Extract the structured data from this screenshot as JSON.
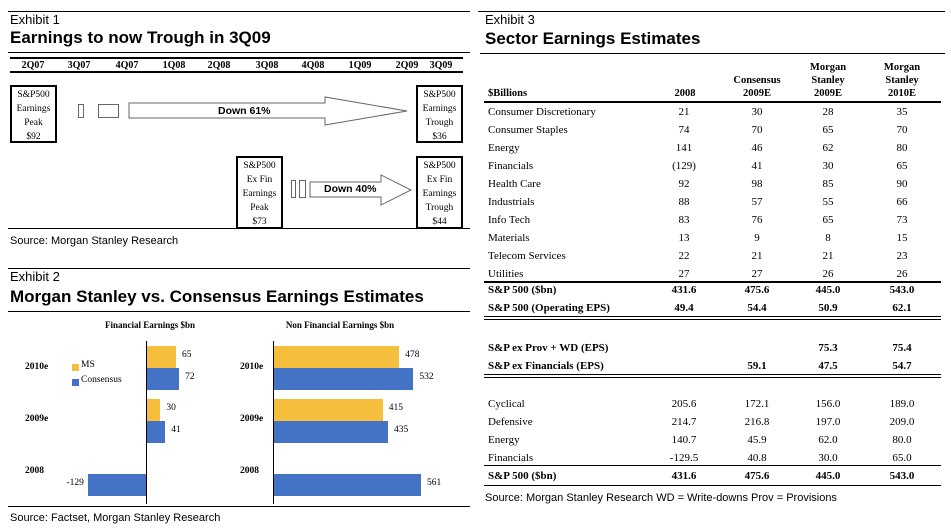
{
  "exhibit1": {
    "label": "Exhibit 1",
    "title": "Earnings to now Trough in 3Q09",
    "quarters": [
      "2Q07",
      "3Q07",
      "4Q07",
      "1Q08",
      "2Q08",
      "3Q08",
      "4Q08",
      "1Q09",
      "2Q09",
      "3Q09"
    ],
    "peak_box": [
      "S&P500",
      "Earnings",
      "Peak",
      "$92"
    ],
    "trough_box": [
      "S&P500",
      "Earnings",
      "Trough",
      "$36"
    ],
    "exfin_peak_box": [
      "S&P500",
      "Ex Fin",
      "Earnings",
      "Peak",
      "$73"
    ],
    "exfin_trough_box": [
      "S&P500",
      "Ex Fin",
      "Earnings",
      "Trough",
      "$44"
    ],
    "arrow1": "Down 61%",
    "arrow2": "Down 40%",
    "source": "Source: Morgan Stanley Research"
  },
  "exhibit2": {
    "label": "Exhibit 2",
    "title": "Morgan Stanley vs. Consensus Earnings Estimates",
    "source": "Source: Factset, Morgan Stanley Research"
  },
  "chart_data": [
    {
      "type": "bar",
      "orientation": "horizontal",
      "title": "Financial Earnings $bn",
      "categories": [
        "2010e",
        "2009e",
        "2008"
      ],
      "series": [
        {
          "name": "MS",
          "color": "#F5BE3C",
          "values": [
            65,
            30,
            null
          ]
        },
        {
          "name": "Consensus",
          "color": "#4472C4",
          "values": [
            72,
            41,
            -129
          ]
        }
      ],
      "legend": "left-inside"
    },
    {
      "type": "bar",
      "orientation": "horizontal",
      "title": "Non Financial Earnings $bn",
      "categories": [
        "2010e",
        "2009e",
        "2008"
      ],
      "series": [
        {
          "name": "MS",
          "color": "#F5BE3C",
          "values": [
            478,
            415,
            null
          ]
        },
        {
          "name": "Consensus",
          "color": "#4472C4",
          "values": [
            532,
            435,
            561
          ]
        }
      ]
    }
  ],
  "exhibit3": {
    "label": "Exhibit 3",
    "title": "Sector Earnings Estimates",
    "headers": [
      "$Billions",
      "2008",
      "Consensus\n2009E",
      "Morgan\nStanley\n2009E",
      "Morgan\nStanley\n2010E"
    ],
    "sectors": [
      [
        "Consumer Discretionary",
        "21",
        "30",
        "28",
        "35"
      ],
      [
        "Consumer Staples",
        "74",
        "70",
        "65",
        "70"
      ],
      [
        "Energy",
        "141",
        "46",
        "62",
        "80"
      ],
      [
        "Financials",
        "(129)",
        "41",
        "30",
        "65"
      ],
      [
        "Health Care",
        "92",
        "98",
        "85",
        "90"
      ],
      [
        "Industrials",
        "88",
        "57",
        "55",
        "66"
      ],
      [
        "Info Tech",
        "83",
        "76",
        "65",
        "73"
      ],
      [
        "Materials",
        "13",
        "9",
        "8",
        "15"
      ],
      [
        "Telecom Services",
        "22",
        "21",
        "21",
        "23"
      ],
      [
        "Utilities",
        "27",
        "27",
        "26",
        "26"
      ]
    ],
    "totals": [
      [
        "S&P 500 ($bn)",
        "431.6",
        "475.6",
        "445.0",
        "543.0"
      ],
      [
        "S&P 500 (Operating EPS)",
        "49.4",
        "54.4",
        "50.9",
        "62.1"
      ]
    ],
    "ex_rows": [
      [
        "S&P ex Prov + WD (EPS)",
        "",
        "",
        "75.3",
        "75.4"
      ],
      [
        "S&P ex Financials (EPS)",
        "",
        "59.1",
        "47.5",
        "54.7"
      ]
    ],
    "groups": [
      [
        "Cyclical",
        "205.6",
        "172.1",
        "156.0",
        "189.0"
      ],
      [
        "Defensive",
        "214.7",
        "216.8",
        "197.0",
        "209.0"
      ],
      [
        "Energy",
        "140.7",
        "45.9",
        "62.0",
        "80.0"
      ],
      [
        "Financials",
        "-129.5",
        "40.8",
        "30.0",
        "65.0"
      ]
    ],
    "group_total": [
      "S&P 500 ($bn)",
      "431.6",
      "475.6",
      "445.0",
      "543.0"
    ],
    "source": "Source: Morgan Stanley Research    WD = Write-downs   Prov = Provisions"
  }
}
